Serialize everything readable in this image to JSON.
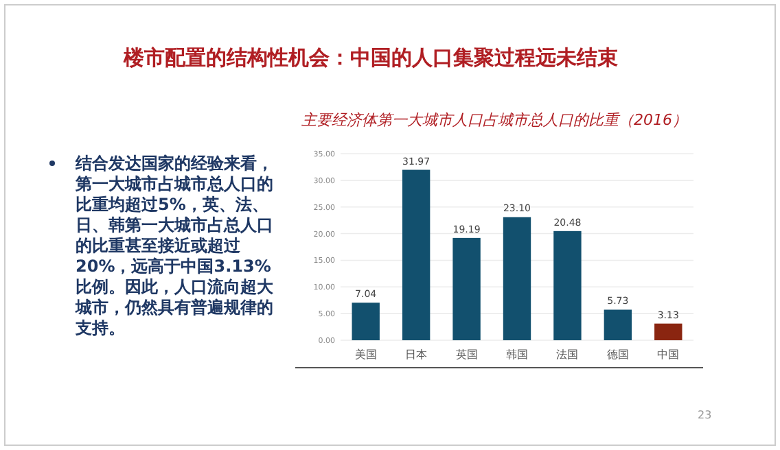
{
  "chart_data": {
    "type": "bar",
    "title": "楼市配置的结构性机会：中国的人口集聚过程远未结束",
    "subtitle": "主要经济体第一大城市人口占城市总人口的比重（2016）",
    "categories": [
      "美国",
      "日本",
      "英国",
      "韩国",
      "法国",
      "德国",
      "中国"
    ],
    "values": [
      7.04,
      31.97,
      19.19,
      23.1,
      20.48,
      5.73,
      3.13
    ],
    "value_labels": [
      "7.04",
      "31.97",
      "19.19",
      "23.10",
      "20.48",
      "5.73",
      "3.13"
    ],
    "colors": [
      "#12506e",
      "#12506e",
      "#12506e",
      "#12506e",
      "#12506e",
      "#12506e",
      "#8a2510"
    ],
    "ylim": [
      0,
      35
    ],
    "yticks": [
      {
        "value": 0,
        "label": "0.00"
      },
      {
        "value": 5,
        "label": "5.00"
      },
      {
        "value": 10,
        "label": "10.00"
      },
      {
        "value": 15,
        "label": "15.00"
      },
      {
        "value": 20,
        "label": "20.00"
      },
      {
        "value": 25,
        "label": "25.00"
      },
      {
        "value": 30,
        "label": "30.00"
      },
      {
        "value": 35,
        "label": "35.00"
      }
    ],
    "grid": "y",
    "annotations": [
      "结合发达国家的经验来看，第一大城市占城市总人口的比重均超过5%，英、法、日、韩第一大城市占总人口的比重甚至接近或超过20%，远高于中国3.13%比例。因此，人口流向超大城市，仍然具有普遍规律的支持。",
      "23"
    ]
  }
}
